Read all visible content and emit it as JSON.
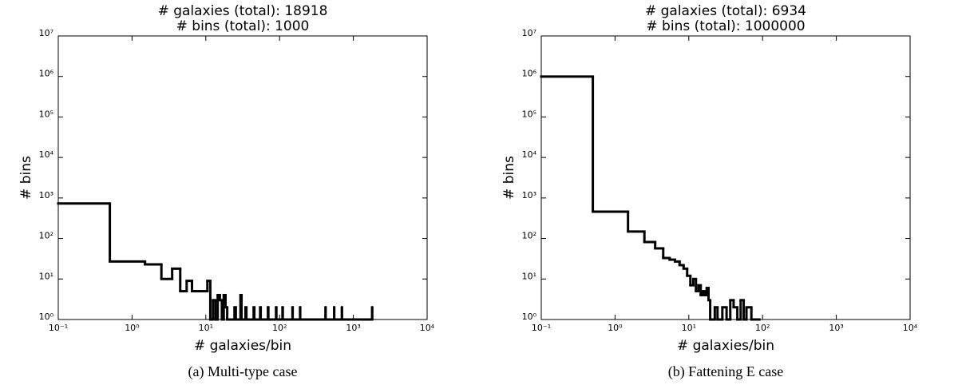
{
  "chart_data": [
    {
      "type": "histogram",
      "title": [
        "# galaxies (total): 18918",
        "# bins (total): 1000"
      ],
      "xlabel": "# galaxies/bin",
      "ylabel": "# bins",
      "caption": "(a) Multi-type case",
      "log_x": true,
      "log_y": true,
      "color": "#000000",
      "xlim": [
        0.1,
        10000
      ],
      "ylim": [
        1,
        10000000
      ],
      "xticks": [
        {
          "value": 0.1,
          "label": "10⁻¹"
        },
        {
          "value": 1,
          "label": "10⁰"
        },
        {
          "value": 10,
          "label": "10¹"
        },
        {
          "value": 100,
          "label": "10²"
        },
        {
          "value": 1000,
          "label": "10³"
        },
        {
          "value": 10000,
          "label": "10⁴"
        }
      ],
      "yticks": [
        {
          "value": 1,
          "label": "10⁰"
        },
        {
          "value": 10,
          "label": "10¹"
        },
        {
          "value": 100,
          "label": "10²"
        },
        {
          "value": 1000,
          "label": "10³"
        },
        {
          "value": 10000,
          "label": "10⁴"
        },
        {
          "value": 100000,
          "label": "10⁵"
        },
        {
          "value": 1000000,
          "label": "10⁶"
        },
        {
          "value": 10000000,
          "label": "10⁷"
        }
      ],
      "bins": [
        0.1,
        0.5,
        1.5,
        2.5,
        3.5,
        4.5,
        5.5,
        6.5,
        7.5,
        8.5,
        9.5,
        10.5,
        11.5,
        12.5,
        13.5,
        14.5,
        15.5,
        16.5,
        17.5,
        18.5,
        19.5,
        20.5,
        24.5,
        25.5,
        29.5,
        30.5,
        34.5,
        35.5,
        44.5,
        45.5,
        54.5,
        55.5,
        69.5,
        70.5,
        89.5,
        90.5,
        109.5,
        110.5,
        149.5,
        150.5,
        189.5,
        190.5,
        419.5,
        420.5,
        549.5,
        550.5,
        699.5,
        700.5,
        1799.5,
        1800.5
      ],
      "counts": [
        730,
        27,
        23,
        10,
        18,
        5,
        9,
        5,
        5,
        5,
        5,
        9,
        1,
        3,
        1,
        4,
        3,
        1,
        4,
        2,
        1,
        1,
        2,
        1,
        4,
        1,
        2,
        1,
        2,
        1,
        2,
        1,
        2,
        1,
        2,
        1,
        2,
        1,
        2,
        1,
        2,
        1,
        2,
        1,
        2,
        1,
        2,
        1,
        2
      ]
    },
    {
      "type": "histogram",
      "title": [
        "# galaxies (total): 6934",
        "# bins (total): 1000000"
      ],
      "xlabel": "# galaxies/bin",
      "ylabel": "# bins",
      "caption": "(b) Fattening E case",
      "log_x": true,
      "log_y": true,
      "color": "#000000",
      "xlim": [
        0.1,
        10000
      ],
      "ylim": [
        1,
        10000000
      ],
      "xticks": [
        {
          "value": 0.1,
          "label": "10⁻¹"
        },
        {
          "value": 1,
          "label": "10⁰"
        },
        {
          "value": 10,
          "label": "10¹"
        },
        {
          "value": 100,
          "label": "10²"
        },
        {
          "value": 1000,
          "label": "10³"
        },
        {
          "value": 10000,
          "label": "10⁴"
        }
      ],
      "yticks": [
        {
          "value": 1,
          "label": "10⁰"
        },
        {
          "value": 10,
          "label": "10¹"
        },
        {
          "value": 100,
          "label": "10²"
        },
        {
          "value": 1000,
          "label": "10³"
        },
        {
          "value": 10000,
          "label": "10⁴"
        },
        {
          "value": 100000,
          "label": "10⁵"
        },
        {
          "value": 1000000,
          "label": "10⁶"
        },
        {
          "value": 10000000,
          "label": "10⁷"
        }
      ],
      "bins": [
        0.1,
        0.5,
        1.5,
        2.5,
        3.5,
        4.5,
        5.5,
        6.5,
        7.5,
        8.5,
        9.5,
        10.5,
        11.5,
        12.5,
        13.5,
        14.5,
        15.5,
        16.5,
        17.5,
        18.5,
        19.5,
        20.5,
        22.5,
        24.5,
        28.5,
        32.5,
        36.5,
        40.5,
        45.5,
        50.5,
        55.5,
        60.5,
        70.5,
        90.5
      ],
      "counts": [
        993000,
        460,
        148,
        82,
        57,
        33,
        30,
        27,
        22,
        18,
        12,
        7,
        10,
        5,
        7,
        4,
        5,
        4,
        6,
        3,
        1,
        1,
        2,
        1,
        2,
        1,
        3,
        2,
        1,
        3,
        1,
        2,
        1
      ]
    }
  ]
}
